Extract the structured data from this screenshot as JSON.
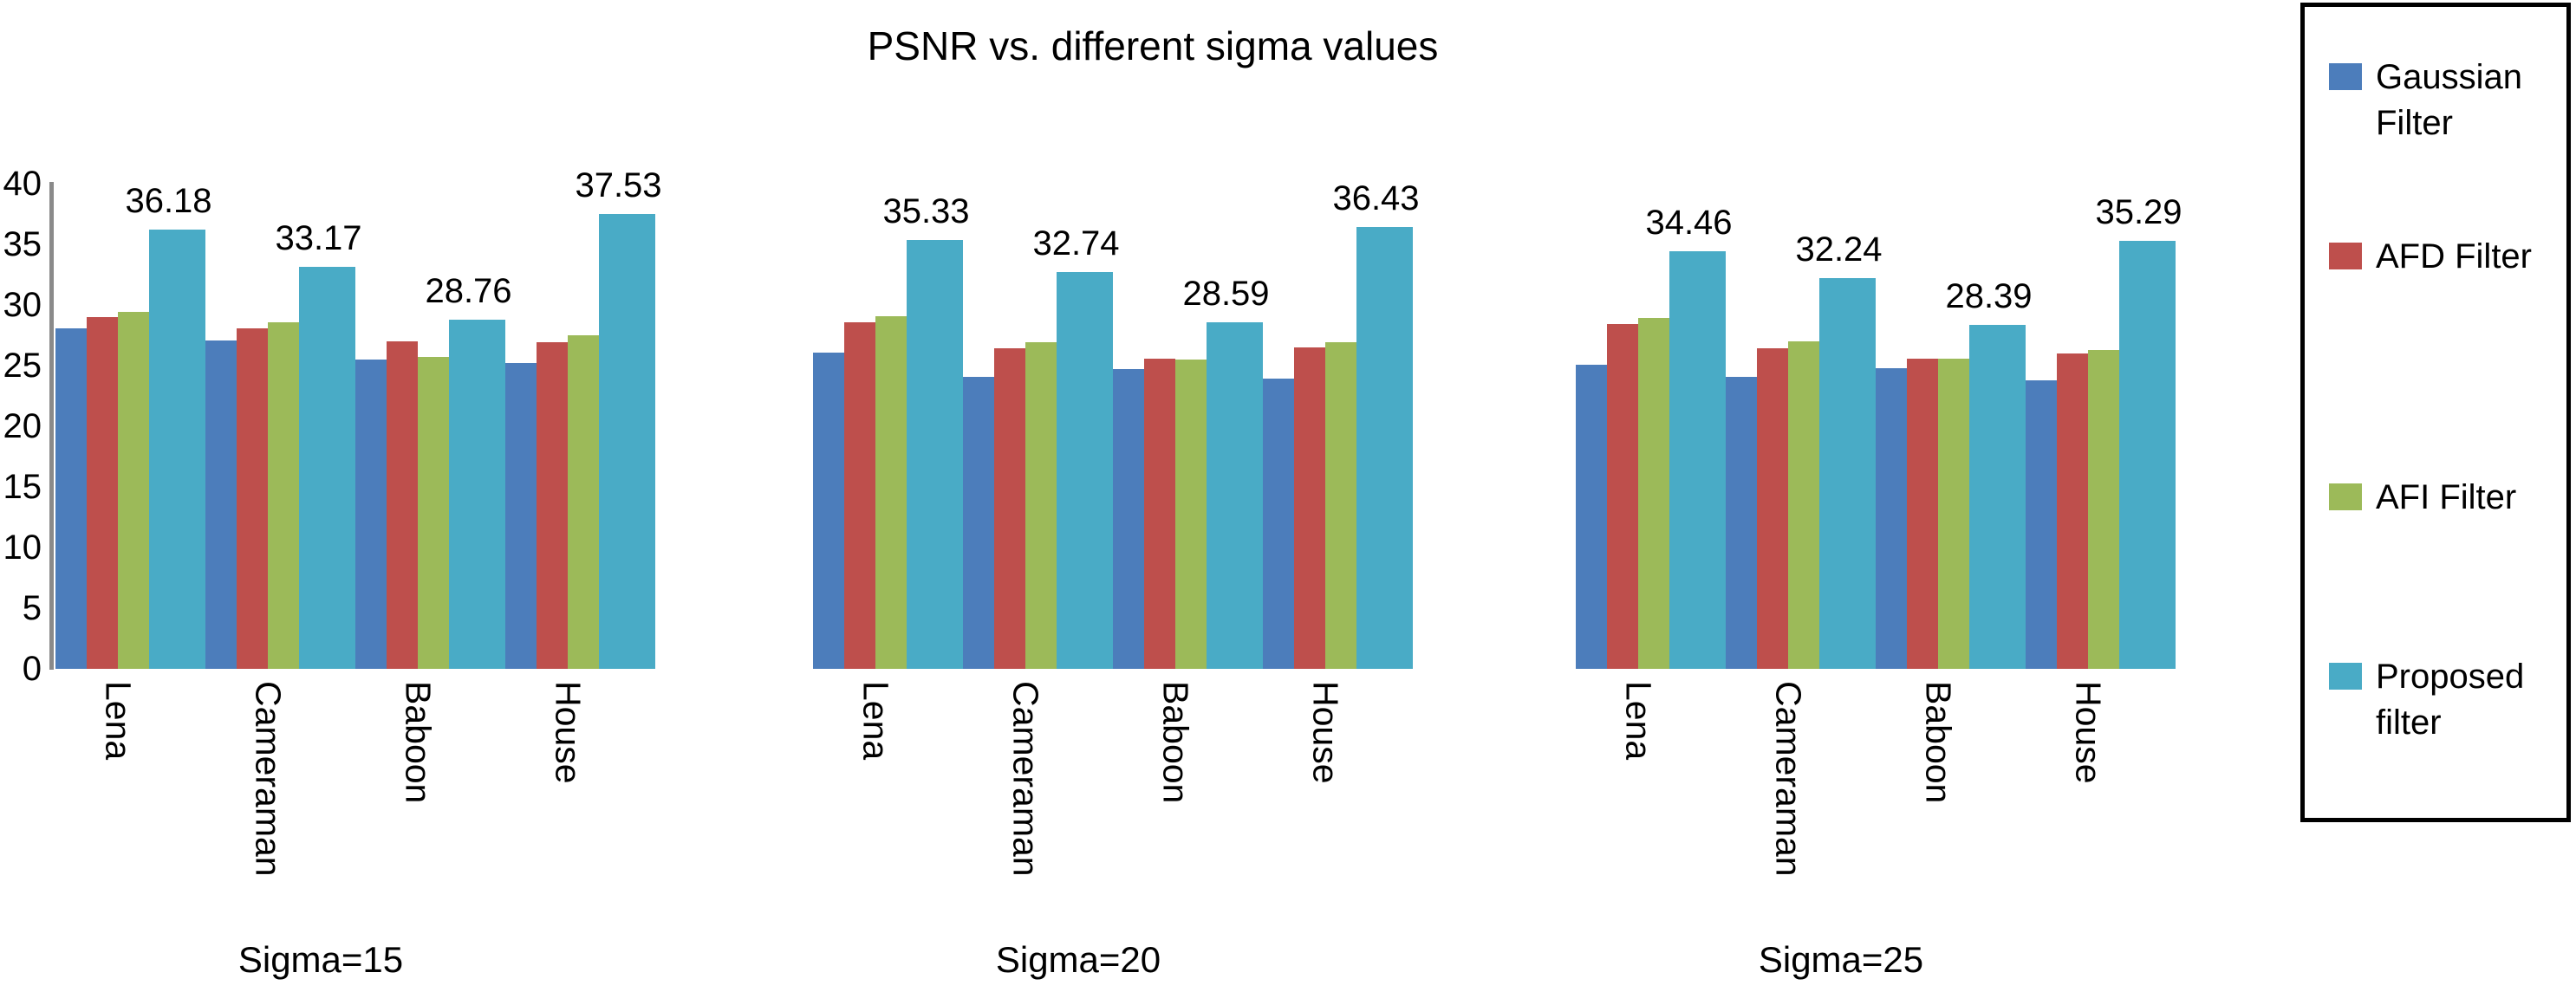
{
  "chart_data": {
    "type": "bar",
    "title": "PSNR vs. different sigma values",
    "xlabel": "",
    "ylabel": "",
    "ylim": [
      0,
      40
    ],
    "y_ticks": [
      "0",
      "5",
      "10",
      "15",
      "20",
      "25",
      "30",
      "35",
      "40"
    ],
    "grid": false,
    "legend_position": "right",
    "axis_color": "#8a8a8a",
    "categories": [
      "Lena",
      "Cameraman",
      "Baboon",
      "House"
    ],
    "series_colors": [
      "#4C7DBB",
      "#BE4F4C",
      "#9CBA59",
      "#49ABC6"
    ],
    "groups": [
      {
        "label": "Sigma=15",
        "series": [
          {
            "name": "Gaussian Filter",
            "values": [
              28.1,
              27.1,
              25.5,
              25.2
            ]
          },
          {
            "name": "AFD Filter",
            "values": [
              29.0,
              28.1,
              27.0,
              26.9
            ]
          },
          {
            "name": "AFI Filter",
            "values": [
              29.4,
              28.6,
              25.7,
              27.5
            ]
          },
          {
            "name": "Proposed filter",
            "values": [
              36.18,
              33.17,
              28.76,
              37.53
            ],
            "data_labels": [
              "36.18",
              "33.17",
              "28.76",
              "37.53"
            ]
          }
        ]
      },
      {
        "label": "Sigma=20",
        "series": [
          {
            "name": "Gaussian Filter",
            "values": [
              26.1,
              24.1,
              24.7,
              23.9
            ]
          },
          {
            "name": "AFD Filter",
            "values": [
              28.6,
              26.4,
              25.6,
              26.5
            ]
          },
          {
            "name": "AFI Filter",
            "values": [
              29.1,
              26.9,
              25.5,
              26.9
            ]
          },
          {
            "name": "Proposed filter",
            "values": [
              35.33,
              32.74,
              28.59,
              36.43
            ],
            "data_labels": [
              "35.33",
              "32.74",
              "28.59",
              "36.43"
            ]
          }
        ]
      },
      {
        "label": "Sigma=25",
        "series": [
          {
            "name": "Gaussian Filter",
            "values": [
              25.1,
              24.1,
              24.8,
              23.8
            ]
          },
          {
            "name": "AFD Filter",
            "values": [
              28.4,
              26.4,
              25.6,
              26.0
            ]
          },
          {
            "name": "AFI Filter",
            "values": [
              28.9,
              27.0,
              25.6,
              26.3
            ]
          },
          {
            "name": "Proposed filter",
            "values": [
              34.46,
              32.24,
              28.39,
              35.29
            ],
            "data_labels": [
              "34.46",
              "32.24",
              "28.39",
              "35.29"
            ]
          }
        ]
      }
    ],
    "legend": [
      {
        "label": "Gaussian Filter",
        "color": "#4C7DBB"
      },
      {
        "label": "AFD Filter",
        "color": "#BE4F4C"
      },
      {
        "label": "AFI Filter",
        "color": "#9CBA59"
      },
      {
        "label": "Proposed filter",
        "color": "#49ABC6"
      }
    ]
  }
}
